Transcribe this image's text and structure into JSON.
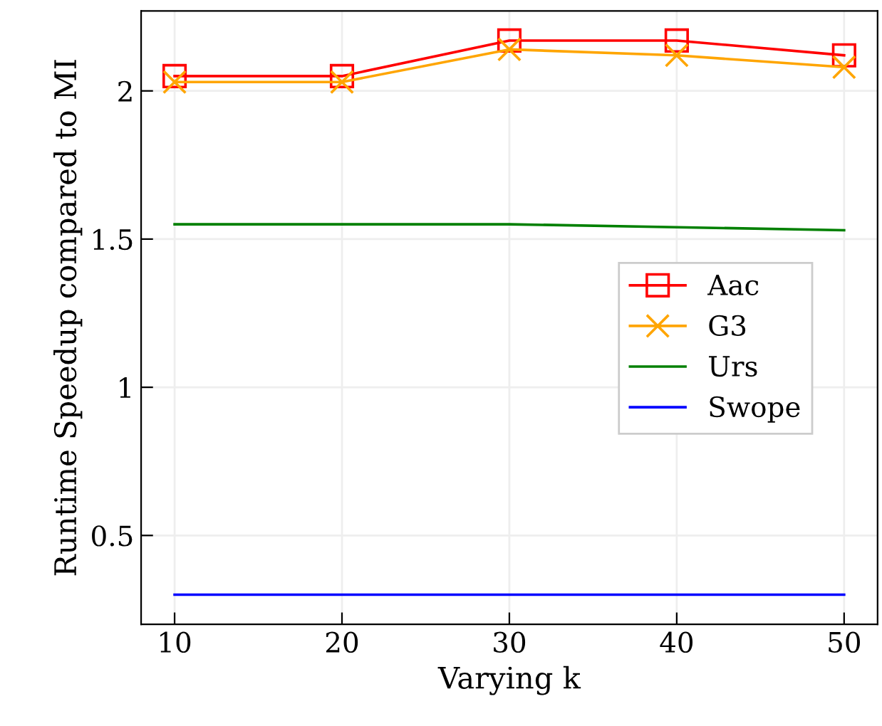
{
  "chart_data": {
    "type": "line",
    "xlabel": "Varying k",
    "ylabel": "Runtime Speedup compared to MI",
    "x": [
      10,
      20,
      30,
      40,
      50
    ],
    "series": [
      {
        "name": "Aac",
        "color": "#ff0000",
        "marker": "square",
        "values": [
          2.05,
          2.05,
          2.17,
          2.17,
          2.12
        ]
      },
      {
        "name": "G3",
        "color": "#ffa500",
        "marker": "cross",
        "values": [
          2.03,
          2.03,
          2.14,
          2.12,
          2.08
        ]
      },
      {
        "name": "Urs",
        "color": "#008000",
        "marker": "none",
        "values": [
          1.55,
          1.55,
          1.55,
          1.54,
          1.53
        ]
      },
      {
        "name": "Swope",
        "color": "#0000ff",
        "marker": "none",
        "values": [
          0.3,
          0.3,
          0.3,
          0.3,
          0.3
        ]
      }
    ],
    "xlim": [
      8,
      52
    ],
    "ylim": [
      0.2,
      2.27
    ],
    "xticks": [
      10,
      20,
      30,
      40,
      50
    ],
    "yticks": [
      0.5,
      1,
      1.5,
      2
    ],
    "grid": true,
    "legend": "center right",
    "line_style": "solid"
  }
}
